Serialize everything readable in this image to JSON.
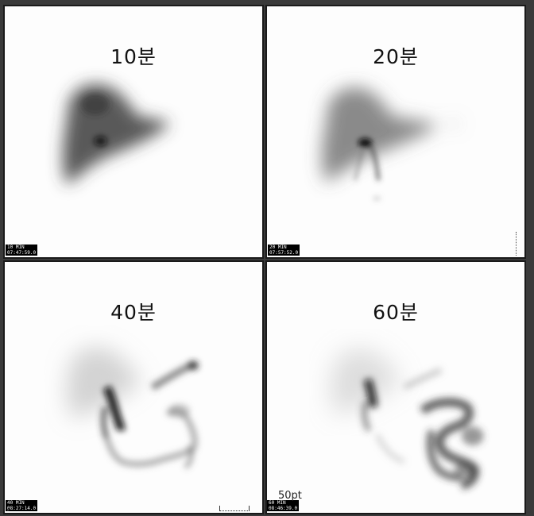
{
  "panels": [
    {
      "label": "10분",
      "stamp_line1": "10 MIN",
      "stamp_line2": "07:47:59.0"
    },
    {
      "label": "20분",
      "stamp_line1": "20 MIN",
      "stamp_line2": "07:57:52.0"
    },
    {
      "label": "40분",
      "stamp_line1": "40 MIN",
      "stamp_line2": "08:27:14.0"
    },
    {
      "label": "60분",
      "stamp_line1": "60 MIN",
      "stamp_line2": "08:46:39.0"
    }
  ],
  "scale_label": "50pt",
  "colors": {
    "border": "#1a1a1a",
    "background": "#fdfdfd",
    "tracer": "#1e1e1e"
  }
}
